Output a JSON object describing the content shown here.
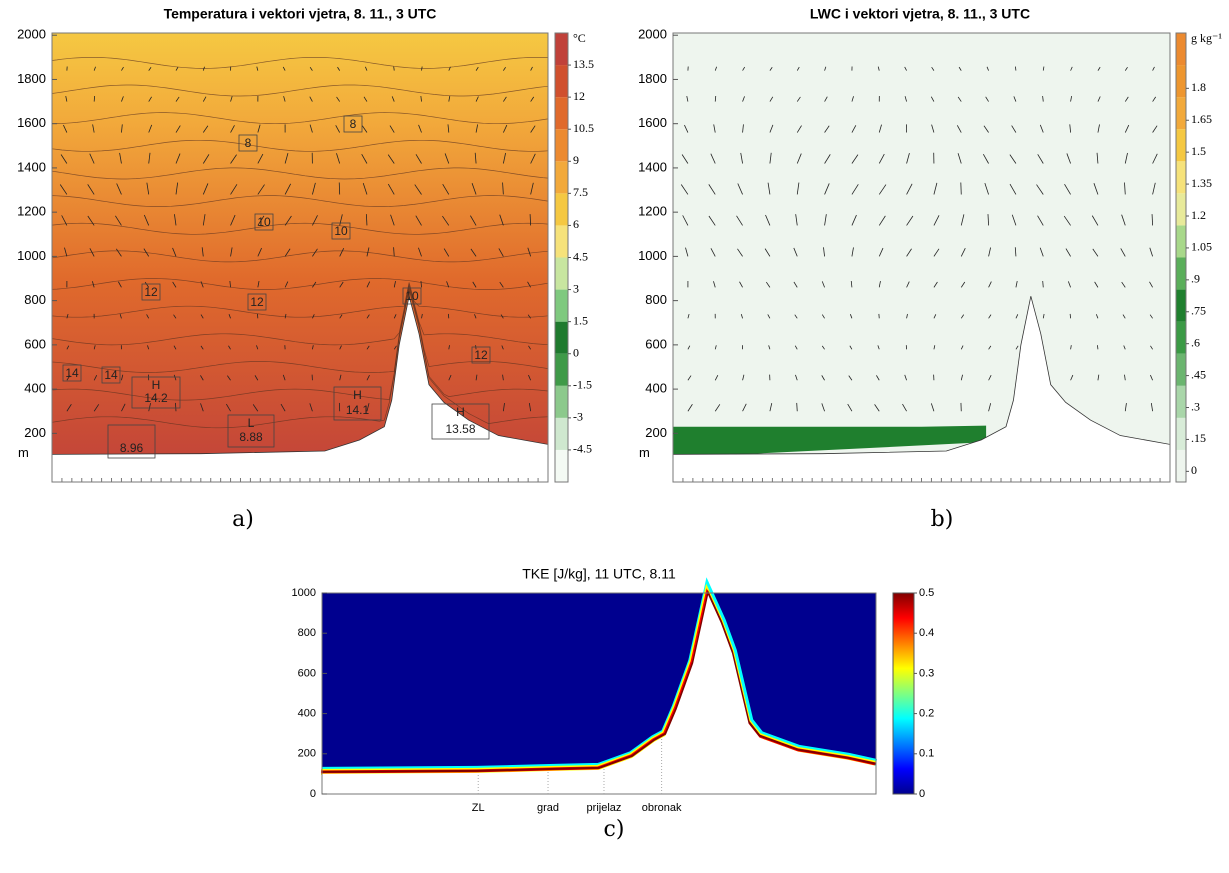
{
  "chart_data": [
    {
      "type": "contour",
      "title": "Temperatura i vektori vjetra, 8. 11., 3 UTC",
      "panel_label": "a)",
      "ylim": [
        -20,
        2010
      ],
      "yticks": [
        200,
        400,
        600,
        800,
        1000,
        1200,
        1400,
        1600,
        1800,
        2000
      ],
      "y_unit": "m",
      "colorbar_unit": "°C",
      "clim": [
        -6,
        15
      ],
      "colorbar_ticks": [
        -4.5,
        -3,
        -1.5,
        0,
        1.5,
        3,
        4.5,
        6,
        7.5,
        9,
        10.5,
        12,
        13.5
      ],
      "colormap": [
        "#f4faf4",
        "#cfe8cf",
        "#8cc98c",
        "#3f9a48",
        "#1f7a2e",
        "#7fc97f",
        "#c8e6a0",
        "#f6e27a",
        "#f5c842",
        "#f2a93b",
        "#ec8a30",
        "#e06a2c",
        "#d0502e",
        "#c0413a"
      ],
      "contour_labels": [
        8,
        8,
        10,
        10,
        10,
        12,
        12,
        12,
        14,
        14
      ],
      "extrema": [
        {
          "label": "H",
          "value": 14.2
        },
        {
          "label": "L",
          "value": 8.88
        },
        {
          "label": "H",
          "value": 14.1
        },
        {
          "label": "H",
          "value": 13.58
        },
        {
          "value": 8.96
        }
      ]
    },
    {
      "type": "contour",
      "title": "LWC i vektori vjetra, 8. 11., 3 UTC",
      "panel_label": "b)",
      "ylim": [
        -20,
        2010
      ],
      "yticks": [
        200,
        400,
        600,
        800,
        1000,
        1200,
        1400,
        1600,
        1800,
        2000
      ],
      "y_unit": "m",
      "colorbar_unit": "g kg⁻¹",
      "clim": [
        -0.05,
        2.06
      ],
      "colorbar_ticks": [
        0,
        {
          "value": 0.15,
          "label": ".15"
        },
        {
          "value": 0.3,
          "label": ".3"
        },
        {
          "value": 0.45,
          "label": ".45"
        },
        {
          "value": 0.6,
          "label": ".6"
        },
        {
          "value": 0.75,
          "label": ".75"
        },
        {
          "value": 0.9,
          "label": ".9"
        },
        1.05,
        1.2,
        1.35,
        1.5,
        1.65,
        1.8
      ],
      "colormap": [
        "#eef5ee",
        "#d8ecd8",
        "#a9d6a9",
        "#6bb56f",
        "#3b9a45",
        "#1f7f2e",
        "#5aae5a",
        "#a8d88a",
        "#e8ea9a",
        "#f6e27a",
        "#f5c842",
        "#f2a93b",
        "#ee962f",
        "#ec8a30"
      ]
    },
    {
      "type": "contour",
      "title": "TKE [J/kg], 11 UTC, 8.11",
      "panel_label": "c)",
      "ylim": [
        0,
        1000
      ],
      "yticks": [
        0,
        200,
        400,
        600,
        800,
        1000
      ],
      "xtick_labels": [
        "ZL",
        "grad",
        "prijelaz",
        "obronak"
      ],
      "clim": [
        0,
        0.5
      ],
      "colorbar_ticks": [
        0,
        0.1,
        0.2,
        0.3,
        0.4,
        0.5
      ],
      "colormap": [
        "#00008f",
        "#0000ff",
        "#0080ff",
        "#00ffff",
        "#80ff80",
        "#ffff00",
        "#ff8000",
        "#ff0000",
        "#800000"
      ]
    }
  ]
}
